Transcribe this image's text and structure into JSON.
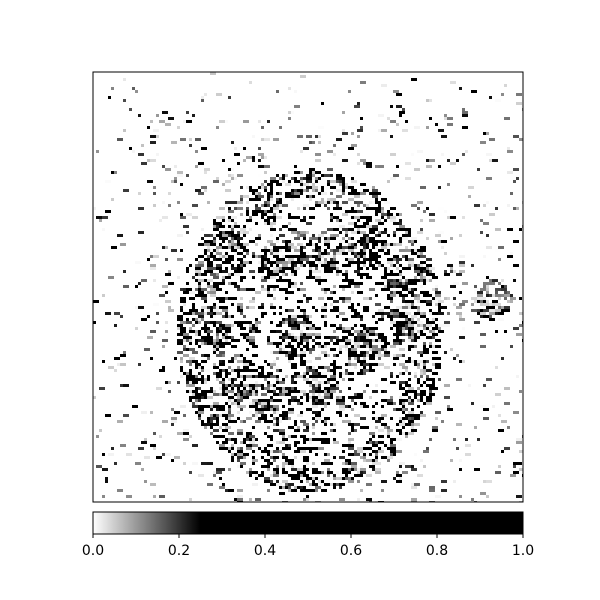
{
  "chart_data": {
    "type": "heatmap",
    "title": "",
    "xlabel": "",
    "ylabel": "",
    "grid": false,
    "axis_ticks": false,
    "colormap": {
      "name": "gray_r",
      "low_color": "#ffffff",
      "high_color": "#000000",
      "saturation_value": 0.25
    },
    "colorbar": {
      "orientation": "horizontal",
      "placement": "bottom",
      "range": [
        0.0,
        1.0
      ],
      "ticks": [
        0.0,
        0.2,
        0.4,
        0.6,
        0.8,
        1.0
      ],
      "tick_labels": [
        "0.0",
        "0.2",
        "0.4",
        "0.6",
        "0.8",
        "1.0"
      ]
    },
    "description_of_content": "Sparse speckled saliency-like map; dense dark speckles concentrated inside a large central ellipse with a faint concentric ring, lighter scattered texture elsewhere"
  }
}
